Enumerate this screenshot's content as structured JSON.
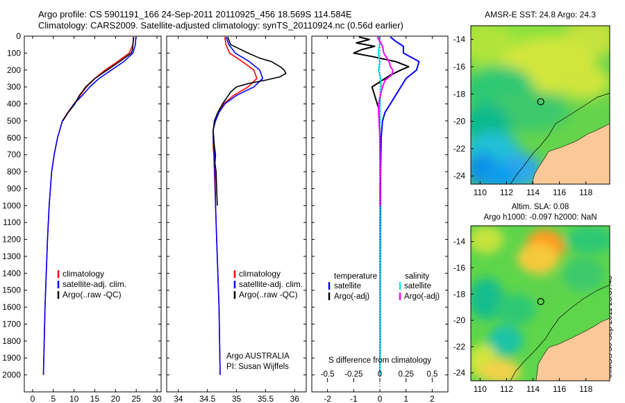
{
  "title_line1": "Argo profile: CS 5901191_166 24-Sep-2011 20110925_456 18.569S 114.584E",
  "title_line2": "Climatology: CARS2009. Satellite-adjusted climatology: synTS_20110924.nc (0.56d earlier)",
  "credit": "©IMOS 30-Sep-2011 23:37:43",
  "colors": {
    "climatology": "#ff0000",
    "satellite": "#0000ff",
    "argo": "#000000",
    "sat_s": "#00e5ee",
    "argo_s": "#ff00ff"
  },
  "chart_data": [
    {
      "type": "line",
      "id": "temperature",
      "xlabel": "temperature (deg C)",
      "ylabel": "",
      "xlim": [
        -2,
        31
      ],
      "ylim": [
        0,
        2100
      ],
      "xticks": [
        0,
        5,
        10,
        15,
        20,
        25,
        30
      ],
      "yticks": [
        0,
        100,
        200,
        300,
        400,
        500,
        600,
        700,
        800,
        900,
        1000,
        1100,
        1200,
        1300,
        1400,
        1500,
        1600,
        1700,
        1800,
        1900,
        2000
      ],
      "legend": [
        "climatology",
        "satellite-adj. clim.",
        "Argo(..raw -QC)"
      ],
      "series": [
        {
          "name": "climatology",
          "color": "#ff0000",
          "depth": [
            5,
            50,
            100,
            150,
            200,
            250,
            300,
            350,
            400,
            450,
            500,
            600,
            700,
            800,
            900,
            1000,
            1200,
            1400,
            1600,
            1800,
            2000
          ],
          "values": [
            24.4,
            24.2,
            23.3,
            20.5,
            17.5,
            15.0,
            13.0,
            11.5,
            10.0,
            8.5,
            7.2,
            6.0,
            5.2,
            4.6,
            4.3,
            4.0,
            3.6,
            3.3,
            3.0,
            2.8,
            2.6
          ]
        },
        {
          "name": "satellite-adj. clim.",
          "color": "#0000ff",
          "depth": [
            5,
            50,
            100,
            150,
            200,
            250,
            300,
            350,
            400,
            450,
            500,
            600,
            700,
            800,
            900,
            1000,
            1200,
            1400,
            1600,
            1800,
            2000
          ],
          "values": [
            24.9,
            24.8,
            24.2,
            22.0,
            19.0,
            16.0,
            13.8,
            12.0,
            10.0,
            8.6,
            7.2,
            6.0,
            5.2,
            4.6,
            4.3,
            4.0,
            3.6,
            3.3,
            3.0,
            2.8,
            2.6
          ]
        },
        {
          "name": "Argo(..raw -QC)",
          "color": "#000000",
          "depth": [
            5,
            20,
            50,
            80,
            100,
            150,
            200,
            250,
            300,
            350,
            400,
            450,
            500
          ],
          "values": [
            24.3,
            24.3,
            24.2,
            24.1,
            23.8,
            21.0,
            18.0,
            15.0,
            12.8,
            11.3,
            10.2,
            8.6,
            7.3
          ]
        }
      ]
    },
    {
      "type": "line",
      "id": "salinity",
      "xlabel": "salinity",
      "ylabel": "",
      "xlim": [
        33.8,
        36.2
      ],
      "ylim": [
        0,
        2100
      ],
      "xticks": [
        34,
        34.5,
        35,
        35.5,
        36
      ],
      "xticklabels": [
        "34",
        "34.5",
        "35",
        "35.5",
        "36"
      ],
      "legend": [
        "climatology",
        "satellite-adj. clim.",
        "Argo(..raw -QC)"
      ],
      "annotation": [
        "Argo AUSTRALIA",
        "PI: Susan Wijffels"
      ],
      "series": [
        {
          "name": "climatology",
          "color": "#ff0000",
          "depth": [
            5,
            50,
            100,
            150,
            200,
            250,
            300,
            350,
            400,
            450,
            500,
            550,
            600,
            650,
            700,
            800,
            1000,
            1200,
            1400,
            1600,
            1800,
            2000
          ],
          "values": [
            34.8,
            34.82,
            34.88,
            35.1,
            35.3,
            35.35,
            35.2,
            34.95,
            34.78,
            34.7,
            34.64,
            34.6,
            34.6,
            34.6,
            34.61,
            34.62,
            34.64,
            34.66,
            34.68,
            34.7,
            34.71,
            34.72
          ]
        },
        {
          "name": "satellite-adj. clim.",
          "color": "#0000ff",
          "depth": [
            5,
            50,
            100,
            150,
            200,
            250,
            300,
            350,
            400,
            450,
            500,
            550,
            600,
            650,
            700,
            800,
            1000,
            1200,
            1400,
            1600,
            1800,
            2000
          ],
          "values": [
            34.82,
            34.87,
            34.98,
            35.22,
            35.4,
            35.45,
            35.3,
            35.0,
            34.8,
            34.7,
            34.64,
            34.6,
            34.6,
            34.61,
            34.62,
            34.63,
            34.64,
            34.66,
            34.68,
            34.7,
            34.71,
            34.72
          ]
        },
        {
          "name": "Argo(..raw -QC)",
          "color": "#000000",
          "depth": [
            5,
            50,
            100,
            130,
            150,
            180,
            200,
            220,
            240,
            260,
            280,
            300,
            330,
            360,
            400,
            450,
            500,
            560,
            600,
            650,
            700,
            750,
            800,
            900,
            1000
          ],
          "values": [
            34.85,
            34.9,
            35.2,
            35.4,
            35.6,
            35.75,
            35.82,
            35.85,
            35.75,
            35.5,
            35.2,
            35.0,
            34.9,
            34.84,
            34.76,
            34.68,
            34.62,
            34.6,
            34.61,
            34.62,
            34.64,
            34.63,
            34.65,
            34.66,
            34.67
          ]
        }
      ]
    },
    {
      "type": "line",
      "id": "difference",
      "xlabel": "T difference from climatology",
      "xlabel_top": "S difference from climatology",
      "xlim": [
        -2.6,
        2.6
      ],
      "ylim": [
        0,
        2100
      ],
      "xticks": [
        -2,
        -1,
        0,
        1,
        2
      ],
      "top_ticks": [
        -0.5,
        -0.25,
        0,
        0.25,
        0.5
      ],
      "top_ticklabels": [
        "-0.5",
        "-0.25",
        "0",
        "0.25",
        "0.5"
      ],
      "legend": {
        "temperature": [
          "satellite",
          "Argo(-adj)"
        ],
        "salinity": [
          "satellite",
          "Argo(-adj)"
        ],
        "headers": [
          "temperature",
          "salinity"
        ]
      },
      "series": [
        {
          "name": "T satellite",
          "color": "#0000ff",
          "depth": [
            5,
            30,
            60,
            100,
            150,
            200,
            250,
            300,
            350,
            400,
            450,
            500,
            600,
            800,
            1000,
            1500,
            1800,
            2000
          ],
          "values": [
            0.4,
            0.6,
            0.9,
            0.9,
            1.5,
            1.4,
            1.0,
            0.8,
            0.6,
            0.4,
            0.2,
            0.1,
            0.05,
            0.03,
            0.02,
            0.01,
            0.01,
            0.0
          ]
        },
        {
          "name": "T Argo(-adj)",
          "color": "#000000",
          "depth": [
            5,
            20,
            40,
            60,
            80,
            100,
            120,
            150,
            180,
            200,
            230,
            260,
            300,
            350,
            400,
            450,
            500
          ],
          "values": [
            -0.8,
            -0.4,
            -0.9,
            -0.2,
            -0.7,
            -1.0,
            -0.3,
            0.6,
            1.1,
            0.8,
            0.4,
            0.1,
            -0.3,
            -0.2,
            -0.1,
            0.0,
            0.0
          ]
        },
        {
          "name": "S satellite",
          "color": "#00e5ee",
          "depth": [
            5,
            30,
            60,
            100,
            150,
            200,
            250,
            300,
            350,
            400,
            500,
            700,
            1000,
            1400,
            1800,
            2000
          ],
          "values": [
            -0.05,
            0.0,
            -0.02,
            -0.06,
            0.0,
            -0.05,
            0.03,
            0.05,
            0.02,
            0.0,
            0.0,
            0.0,
            0.0,
            0.0,
            0.0,
            0.0
          ]
        },
        {
          "name": "S Argo(-adj)",
          "color": "#ff00ff",
          "depth": [
            5,
            30,
            60,
            100,
            150,
            180,
            200,
            230,
            260,
            300,
            350,
            400,
            450,
            500,
            600,
            700,
            800,
            900,
            1000
          ],
          "values": [
            -0.1,
            0.0,
            0.1,
            0.15,
            0.35,
            0.4,
            0.5,
            0.45,
            0.2,
            0.1,
            0.02,
            -0.05,
            -0.05,
            -0.03,
            0.0,
            0.01,
            0.02,
            0.01,
            0.01
          ]
        }
      ]
    },
    {
      "type": "heatmap",
      "id": "sst_map",
      "title": "AMSR-E SST: 24.8 Argo: 24.3",
      "xlim": [
        109.3,
        119.8
      ],
      "ylim": [
        -24.6,
        -13.0
      ],
      "xticks": [
        110,
        112,
        114,
        116,
        118
      ],
      "yticks": [
        -14,
        -16,
        -18,
        -20,
        -22,
        -24
      ],
      "marker": {
        "lon": 114.584,
        "lat": -18.569
      }
    },
    {
      "type": "heatmap",
      "id": "sla_map",
      "title": "Altim. SLA: 0.08",
      "subtitle": "Argo h1000: -0.097 h2000: NaN",
      "xlim": [
        109.3,
        119.8
      ],
      "ylim": [
        -24.6,
        -12.8
      ],
      "xticks": [
        110,
        112,
        114,
        116,
        118
      ],
      "yticks": [
        -14,
        -16,
        -18,
        -20,
        -22,
        -24
      ],
      "marker": {
        "lon": 114.584,
        "lat": -18.569
      }
    }
  ]
}
